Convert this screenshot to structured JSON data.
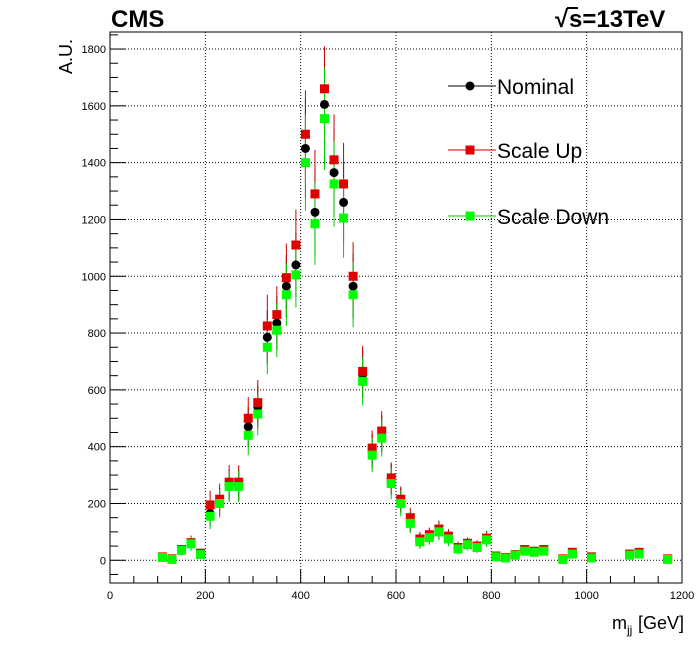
{
  "header": {
    "experiment": "CMS",
    "sqrt": "√",
    "energy": "s=13TeV"
  },
  "colors": {
    "nominal": "#000000",
    "scale_up": "#e00000",
    "scale_down": "#00ff00",
    "scale_down_marker": "#00ff00",
    "error_nominal": "#000000",
    "error_up": "#cc0000",
    "error_down": "#00cc00"
  },
  "chart_data": {
    "type": "scatter",
    "xlabel": "m",
    "xlabel_sub": "jj",
    "xlabel_unit": "[GeV]",
    "ylabel": "A.U.",
    "xlim": [
      0,
      1200
    ],
    "ylim": [
      -80,
      1860
    ],
    "x_ticks": [
      "0",
      "200",
      "400",
      "600",
      "800",
      "1000",
      "1200"
    ],
    "y_ticks": [
      "0",
      "200",
      "400",
      "600",
      "800",
      "1000",
      "1200",
      "1400",
      "1600",
      "1800"
    ],
    "grid": true,
    "legend_position": "top-right",
    "x": [
      110,
      130,
      150,
      170,
      190,
      210,
      230,
      250,
      270,
      290,
      310,
      330,
      350,
      370,
      390,
      410,
      430,
      450,
      470,
      490,
      510,
      530,
      550,
      570,
      590,
      610,
      630,
      650,
      670,
      690,
      710,
      730,
      750,
      770,
      790,
      810,
      830,
      850,
      870,
      890,
      910,
      950,
      970,
      1010,
      1090,
      1110,
      1170
    ],
    "series": [
      {
        "name": "Nominal",
        "marker": "circle",
        "values": [
          10,
          5,
          35,
          60,
          22,
          165,
          205,
          265,
          265,
          470,
          540,
          785,
          835,
          965,
          1040,
          1450,
          1225,
          1605,
          1365,
          1260,
          965,
          655,
          385,
          445,
          285,
          210,
          135,
          70,
          85,
          105,
          80,
          45,
          60,
          50,
          75,
          15,
          10,
          20,
          35,
          30,
          35,
          5,
          25,
          10,
          20,
          25,
          5
        ],
        "errors": [
          10,
          8,
          15,
          25,
          15,
          45,
          50,
          55,
          55,
          70,
          75,
          95,
          95,
          110,
          115,
          175,
          155,
          185,
          155,
          140,
          115,
          85,
          60,
          65,
          55,
          45,
          35,
          25,
          25,
          30,
          25,
          20,
          20,
          20,
          25,
          10,
          10,
          12,
          15,
          15,
          15,
          8,
          12,
          10,
          12,
          12,
          8
        ]
      },
      {
        "name": "Scale Up",
        "marker": "square",
        "values": [
          12,
          5,
          38,
          62,
          25,
          195,
          215,
          275,
          275,
          500,
          555,
          825,
          865,
          995,
          1110,
          1500,
          1290,
          1660,
          1410,
          1325,
          1000,
          665,
          395,
          455,
          290,
          215,
          150,
          75,
          90,
          110,
          85,
          45,
          60,
          50,
          78,
          15,
          10,
          20,
          38,
          32,
          38,
          5,
          28,
          12,
          22,
          28,
          5
        ],
        "errors": [
          10,
          8,
          15,
          25,
          15,
          50,
          55,
          60,
          60,
          75,
          80,
          110,
          100,
          120,
          125,
          155,
          155,
          150,
          160,
          145,
          120,
          90,
          62,
          70,
          55,
          45,
          35,
          25,
          25,
          30,
          25,
          20,
          20,
          20,
          25,
          10,
          10,
          12,
          15,
          15,
          15,
          8,
          12,
          10,
          12,
          12,
          8
        ]
      },
      {
        "name": "Scale Down",
        "marker": "square",
        "values": [
          10,
          3,
          35,
          58,
          20,
          155,
          200,
          260,
          260,
          440,
          515,
          750,
          810,
          935,
          1005,
          1400,
          1185,
          1555,
          1325,
          1205,
          935,
          630,
          370,
          430,
          270,
          200,
          130,
          65,
          80,
          100,
          75,
          40,
          55,
          45,
          72,
          12,
          8,
          18,
          32,
          28,
          32,
          3,
          22,
          8,
          18,
          22,
          3
        ],
        "errors": [
          10,
          8,
          15,
          25,
          15,
          45,
          50,
          55,
          55,
          70,
          75,
          95,
          95,
          110,
          115,
          170,
          145,
          180,
          150,
          140,
          115,
          85,
          60,
          65,
          55,
          45,
          35,
          25,
          25,
          30,
          25,
          20,
          20,
          20,
          25,
          10,
          10,
          12,
          15,
          15,
          15,
          8,
          12,
          10,
          12,
          12,
          8
        ]
      }
    ]
  }
}
